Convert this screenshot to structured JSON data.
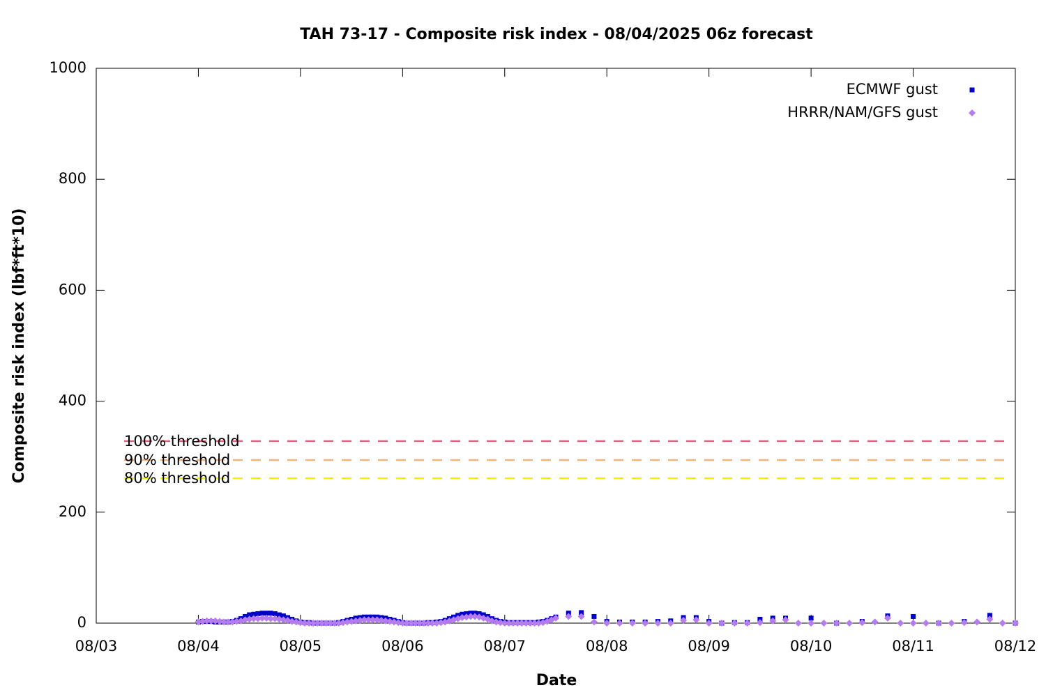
{
  "chart_data": {
    "type": "scatter",
    "title": "TAH 73-17 - Composite risk index - 08/04/2025 06z forecast",
    "x_label": "Date",
    "y_label": "Composite risk index (lbf*ft*10)",
    "xlim": [
      3,
      12
    ],
    "xticks": [
      {
        "value": 3,
        "label": "08/03"
      },
      {
        "value": 4,
        "label": "08/04"
      },
      {
        "value": 5,
        "label": "08/05"
      },
      {
        "value": 6,
        "label": "08/06"
      },
      {
        "value": 7,
        "label": "08/07"
      },
      {
        "value": 8,
        "label": "08/08"
      },
      {
        "value": 9,
        "label": "08/09"
      },
      {
        "value": 10,
        "label": "08/10"
      },
      {
        "value": 11,
        "label": "08/11"
      },
      {
        "value": 12,
        "label": "08/12"
      }
    ],
    "ylim": [
      0,
      1000
    ],
    "yticks": [
      0,
      200,
      400,
      600,
      800,
      1000
    ],
    "legend": "top-right",
    "x": [
      4,
      4.0417,
      4.0833,
      4.125,
      4.1667,
      4.2083,
      4.25,
      4.2917,
      4.3333,
      4.375,
      4.4167,
      4.4583,
      4.5,
      4.5417,
      4.5833,
      4.625,
      4.6667,
      4.7083,
      4.75,
      4.7917,
      4.8333,
      4.875,
      4.9167,
      4.9583,
      5,
      5.0417,
      5.0833,
      5.125,
      5.1667,
      5.2083,
      5.25,
      5.2917,
      5.3333,
      5.375,
      5.4167,
      5.4583,
      5.5,
      5.5417,
      5.5833,
      5.625,
      5.6667,
      5.7083,
      5.75,
      5.7917,
      5.8333,
      5.875,
      5.9167,
      5.9583,
      6,
      6.0417,
      6.0833,
      6.125,
      6.1667,
      6.2083,
      6.25,
      6.2917,
      6.3333,
      6.375,
      6.4167,
      6.4583,
      6.5,
      6.5417,
      6.5833,
      6.625,
      6.6667,
      6.7083,
      6.75,
      6.7917,
      6.8333,
      6.875,
      6.9167,
      6.9583,
      7,
      7.0417,
      7.0833,
      7.125,
      7.1667,
      7.2083,
      7.25,
      7.2917,
      7.3333,
      7.375,
      7.4167,
      7.4583,
      7.5,
      7.625,
      7.75,
      7.875,
      8,
      8.125,
      8.25,
      8.375,
      8.5,
      8.625,
      8.75,
      8.875,
      9,
      9.125,
      9.25,
      9.375,
      9.5,
      9.625,
      9.75,
      9.875,
      10,
      10.125,
      10.25,
      10.375,
      10.5,
      10.625,
      10.75,
      10.875,
      11,
      11.125,
      11.25,
      11.375,
      11.5,
      11.625,
      11.75,
      11.875,
      12
    ],
    "series": [
      {
        "name": "ECMWF gust",
        "color": "#0000c8",
        "marker": "square",
        "values": [
          2,
          3,
          3,
          3,
          2,
          2,
          2,
          2,
          3,
          5,
          8,
          12,
          15,
          16,
          17,
          18,
          18,
          18,
          17,
          15,
          13,
          10,
          7,
          4,
          2,
          1,
          1,
          0,
          0,
          0,
          0,
          0,
          0,
          1,
          3,
          5,
          7,
          9,
          10,
          11,
          11,
          11,
          11,
          10,
          9,
          7,
          5,
          3,
          1,
          0,
          0,
          0,
          0,
          0,
          1,
          1,
          2,
          3,
          5,
          8,
          11,
          14,
          16,
          17,
          18,
          18,
          17,
          15,
          12,
          8,
          5,
          3,
          2,
          1,
          1,
          1,
          1,
          1,
          1,
          1,
          2,
          3,
          5,
          8,
          11,
          18,
          19,
          12,
          3,
          2,
          2,
          2,
          3,
          4,
          10,
          10,
          3,
          0,
          1,
          1,
          7,
          9,
          9,
          null,
          9,
          null,
          0,
          null,
          3,
          null,
          13,
          null,
          12,
          null,
          0,
          null,
          3,
          null,
          14,
          null,
          0
        ]
      },
      {
        "name": "HRRR/NAM/GFS gust",
        "color": "#b57cf0",
        "marker": "diamond",
        "values": [
          2,
          3,
          4,
          4,
          4,
          3,
          2,
          2,
          2,
          3,
          4,
          6,
          7,
          8,
          8,
          9,
          9,
          8,
          8,
          7,
          6,
          5,
          3,
          2,
          1,
          0,
          0,
          0,
          0,
          0,
          0,
          0,
          0,
          0,
          1,
          2,
          3,
          4,
          5,
          6,
          6,
          6,
          6,
          5,
          4,
          3,
          2,
          1,
          0,
          0,
          0,
          0,
          0,
          0,
          0,
          0,
          0,
          1,
          2,
          4,
          6,
          8,
          10,
          11,
          12,
          12,
          11,
          9,
          7,
          4,
          2,
          1,
          0,
          0,
          0,
          0,
          0,
          0,
          0,
          0,
          0,
          1,
          3,
          6,
          9,
          12,
          12,
          2,
          0,
          0,
          0,
          0,
          0,
          0,
          5,
          6,
          0,
          0,
          0,
          0,
          1,
          4,
          6,
          0,
          0,
          0,
          0,
          0,
          1,
          2,
          9,
          0,
          0,
          0,
          0,
          0,
          1,
          2,
          7,
          0,
          0
        ]
      }
    ],
    "thresholds": [
      {
        "label": "100% threshold",
        "value": 328,
        "color": "#e0607e"
      },
      {
        "label": "90% threshold",
        "value": 294,
        "color": "#f7b47a"
      },
      {
        "label": "80% threshold",
        "value": 261,
        "color": "#f5f000"
      }
    ]
  }
}
